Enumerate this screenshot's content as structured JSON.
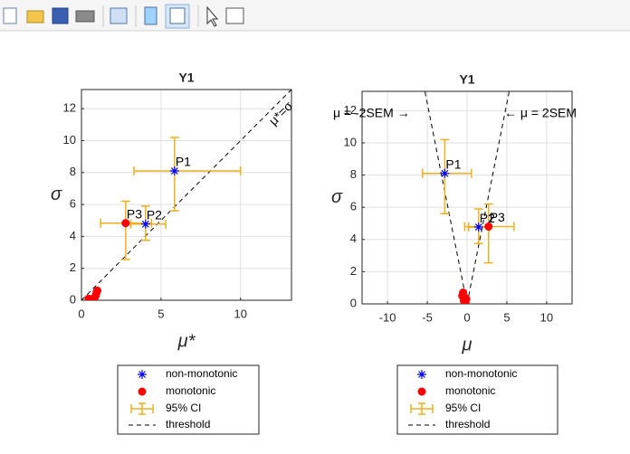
{
  "chart_data": [
    {
      "type": "scatter",
      "title": "Y1",
      "x_label": "μ*",
      "y_label": "σ",
      "xlim": [
        0,
        13.2
      ],
      "ylim": [
        0,
        13.2
      ],
      "xticks": [
        0,
        5,
        10
      ],
      "yticks": [
        0,
        2,
        4,
        6,
        8,
        10,
        12
      ],
      "grid": true,
      "series": [
        {
          "name": "non-monotonic",
          "color": "#0000ff",
          "marker": "asterisk",
          "x": [
            5.85,
            4.03
          ],
          "values": [
            8.1,
            4.77
          ],
          "labels": [
            "P1",
            "P2"
          ]
        },
        {
          "name": "monotonic",
          "color": "#ff0000",
          "marker": "dot",
          "x": [
            2.78,
            0.45,
            0.9,
            0.95,
            0.85,
            1.0
          ],
          "values": [
            4.83,
            0.1,
            0.3,
            0.5,
            0.2,
            0.6
          ],
          "labels": [
            "P3",
            null,
            null,
            null,
            null,
            null
          ]
        }
      ],
      "ci": {
        "name": "95% CI",
        "color": "#edb120",
        "x": [
          5.85,
          4.03,
          2.78
        ],
        "y": [
          8.1,
          4.77,
          4.83
        ],
        "x_low": [
          3.3,
          3.1,
          1.2
        ],
        "x_high": [
          10,
          5.3,
          4.4
        ],
        "y_low": [
          5.6,
          3.75,
          2.55
        ],
        "y_high": [
          10.2,
          5.9,
          6.2
        ]
      },
      "threshold": {
        "name": "threshold",
        "color": "#000000",
        "x": [
          [
            0,
            13.2
          ]
        ],
        "y": [
          [
            0,
            13.2
          ]
        ]
      },
      "annotations": [
        "μ*=σ"
      ]
    },
    {
      "type": "scatter",
      "title": "Y1",
      "x_label": "μ",
      "y_label": "σ",
      "xlim": [
        -13.2,
        13.2
      ],
      "ylim": [
        0,
        13.2
      ],
      "xticks": [
        -10,
        -5,
        0,
        5,
        10
      ],
      "yticks": [
        0,
        2,
        4,
        6,
        8,
        10,
        12
      ],
      "grid": true,
      "series": [
        {
          "name": "non-monotonic",
          "color": "#0000ff",
          "marker": "asterisk",
          "x": [
            -2.8,
            1.45
          ],
          "values": [
            8.1,
            4.77
          ],
          "labels": [
            "P1",
            "P2"
          ]
        },
        {
          "name": "monotonic",
          "color": "#ff0000",
          "marker": "dot",
          "x": [
            2.7,
            -0.5,
            -0.6,
            -0.3,
            -0.4,
            -0.2,
            -0.1
          ],
          "values": [
            4.8,
            0.7,
            0.5,
            0.4,
            0.2,
            0.1,
            0.3
          ],
          "labels": [
            "P3",
            null,
            null,
            null,
            null,
            null,
            null
          ]
        }
      ],
      "ci": {
        "name": "95% CI",
        "color": "#edb120",
        "x": [
          -2.8,
          1.45,
          2.7
        ],
        "y": [
          8.1,
          4.77,
          4.8
        ],
        "x_low": [
          -5.6,
          0.2,
          -0.3
        ],
        "x_high": [
          0.55,
          2.8,
          5.9
        ],
        "y_low": [
          5.6,
          3.75,
          2.55
        ],
        "y_high": [
          10.2,
          5.9,
          6.2
        ]
      },
      "threshold": {
        "name": "threshold",
        "color": "#000000",
        "x": [
          [
            0,
            -5.3
          ],
          [
            0,
            5.3
          ]
        ],
        "y": [
          [
            0,
            13.2
          ],
          [
            0,
            13.2
          ]
        ]
      },
      "annotations": [
        "μ = -2SEM →",
        "← μ = 2SEM"
      ]
    }
  ]
}
